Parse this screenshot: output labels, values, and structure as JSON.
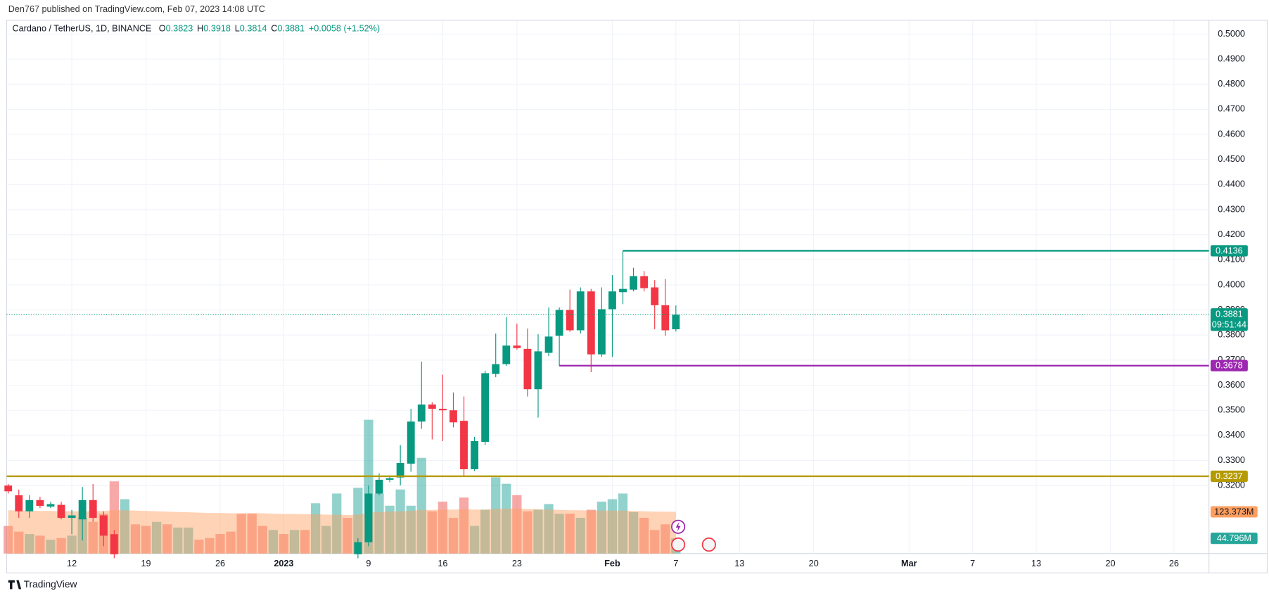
{
  "header": {
    "published": "Den767 published on TradingView.com, Feb 07, 2023 14:08 UTC"
  },
  "footer": {
    "brand": "TradingView"
  },
  "chart_data": {
    "type": "candlestick",
    "symbol": "Cardano / TetherUS, 1D, BINANCE",
    "ohlc_prefixes": [
      "O",
      "H",
      "L",
      "C"
    ],
    "change": "+0.0058 (+1.52%)",
    "up_color": "#089981",
    "down_color": "#f23645",
    "candles": {
      "open": [
        0.32,
        0.3161,
        0.3097,
        0.3142,
        0.3116,
        0.3123,
        0.3071,
        0.3065,
        0.3142,
        0.3081,
        0.3006,
        null,
        null,
        null,
        null,
        null,
        null,
        null,
        null,
        null,
        null,
        null,
        null,
        null,
        null,
        null,
        null,
        null,
        null,
        null,
        null,
        null,
        null,
        0.2926,
        0.2974,
        0.3168,
        0.3223,
        0.3232,
        0.3287,
        0.3455,
        0.3523,
        0.3506,
        0.35,
        0.3458,
        0.3265,
        0.3374,
        0.3645,
        0.3684,
        0.3758,
        0.3745,
        0.3584,
        0.3729,
        0.3797,
        0.39,
        0.3819,
        0.3974,
        0.3723,
        0.3903,
        0.3971,
        0.3981,
        0.4035,
        0.399,
        0.3919,
        0.3823
      ],
      "high": [
        0.3206,
        0.3184,
        0.3161,
        0.3155,
        0.3135,
        0.3135,
        0.3103,
        0.3194,
        0.3206,
        0.3097,
        0.3022,
        null,
        null,
        null,
        null,
        null,
        null,
        null,
        null,
        null,
        null,
        null,
        null,
        null,
        null,
        null,
        null,
        null,
        null,
        null,
        null,
        null,
        null,
        0.299,
        0.32,
        0.3248,
        0.3239,
        0.3361,
        0.3506,
        0.3694,
        0.3532,
        0.3642,
        0.3571,
        0.3555,
        0.3394,
        0.3658,
        0.3806,
        0.3871,
        0.3845,
        0.3826,
        0.3803,
        0.391,
        0.391,
        0.3981,
        0.399,
        0.3984,
        0.399,
        0.4039,
        0.4136,
        0.4068,
        0.4055,
        0.4019,
        0.4023,
        0.3918
      ],
      "low": [
        0.3168,
        0.3071,
        0.3071,
        0.311,
        0.311,
        0.3065,
        0.3006,
        0.2981,
        0.3055,
        0.2958,
        0.291,
        null,
        null,
        null,
        null,
        null,
        null,
        null,
        null,
        null,
        null,
        null,
        null,
        null,
        null,
        null,
        null,
        null,
        null,
        null,
        null,
        null,
        null,
        0.291,
        0.2958,
        0.3161,
        0.3213,
        0.32,
        0.3255,
        0.3426,
        0.3384,
        0.3377,
        0.3432,
        0.3239,
        0.3258,
        0.3361,
        0.3632,
        0.3677,
        0.3742,
        0.3555,
        0.3471,
        0.3716,
        0.3678,
        0.3813,
        0.3806,
        0.3652,
        0.3713,
        0.3713,
        0.3923,
        0.3974,
        0.3974,
        0.3823,
        0.3797,
        0.3814
      ],
      "close": [
        0.3177,
        0.3097,
        0.3142,
        0.3119,
        0.3126,
        0.3071,
        0.3081,
        0.3142,
        0.3071,
        0.3,
        0.2926,
        null,
        null,
        null,
        null,
        null,
        null,
        null,
        null,
        null,
        null,
        null,
        null,
        null,
        null,
        null,
        null,
        null,
        null,
        null,
        null,
        null,
        null,
        0.2974,
        0.3168,
        0.3223,
        0.3229,
        0.329,
        0.3455,
        0.3523,
        0.3506,
        0.35,
        0.3452,
        0.3265,
        0.3377,
        0.3648,
        0.3684,
        0.3758,
        0.3748,
        0.3584,
        0.3735,
        0.3794,
        0.39,
        0.3819,
        0.3974,
        0.3723,
        0.3903,
        0.3974,
        0.3984,
        0.4035,
        0.3987,
        0.3919,
        0.3819,
        0.3881
      ]
    },
    "countdown": "09:51:44",
    "volume": {
      "values": [
        81.6,
        64.8,
        57.6,
        52.8,
        40.8,
        45.6,
        52.8,
        105.6,
        93.6,
        117.6,
        213.6,
        160.8,
        86.4,
        81.6,
        93.6,
        86.4,
        76.8,
        76.8,
        40.8,
        45.6,
        57.6,
        64.8,
        117.6,
        117.6,
        81.6,
        69.6,
        57.6,
        69.6,
        69.6,
        148.8,
        81.6,
        177.6,
        105.6,
        194.4,
        396,
        177.6,
        141.6,
        189.6,
        141.6,
        283.2,
        124.8,
        153.6,
        105.6,
        165.6,
        81.6,
        129.6,
        225.6,
        206.4,
        172.8,
        124.8,
        129.6,
        146.4,
        117.6,
        117.6,
        105.6,
        129.6,
        153.6,
        160.8,
        177.6,
        122.4,
        105.6,
        69.6,
        86.4,
        44.796
      ],
      "colors": [
        "#ef5350",
        "#ef5350",
        "#26a69a",
        "#ef5350",
        "#26a69a",
        "#ef5350",
        "#26a69a",
        "#26a69a",
        "#ef5350",
        "#ef5350",
        "#ef5350",
        "#26a69a",
        "#ef5350",
        "#ef5350",
        "#26a69a",
        "#ef5350",
        "#26a69a",
        "#26a69a",
        "#ef5350",
        "#ef5350",
        "#ef5350",
        "#ef5350",
        "#ef5350",
        "#ef5350",
        "#ef5350",
        "#26a69a",
        "#ef5350",
        "#26a69a",
        "#ef5350",
        "#26a69a",
        "#26a69a",
        "#26a69a",
        "#ef5350",
        "#26a69a",
        "#26a69a",
        "#26a69a",
        "#26a69a",
        "#26a69a",
        "#26a69a",
        "#26a69a",
        "#ef5350",
        "#ef5350",
        "#ef5350",
        "#ef5350",
        "#26a69a",
        "#26a69a",
        "#26a69a",
        "#26a69a",
        "#ef5350",
        "#ef5350",
        "#26a69a",
        "#26a69a",
        "#26a69a",
        "#ef5350",
        "#26a69a",
        "#ef5350",
        "#26a69a",
        "#26a69a",
        "#26a69a",
        "#26a69a",
        "#ef5350",
        "#ef5350",
        "#ef5350",
        "#26a69a"
      ],
      "last_label": "44.796M"
    },
    "volume_ma": {
      "color": "#ff9e5e",
      "values": [
        128,
        127,
        127,
        126,
        126,
        125,
        125,
        125,
        125,
        126,
        128,
        128,
        127,
        126,
        125,
        124,
        123,
        122,
        121,
        120,
        120,
        119,
        119,
        120,
        119,
        118,
        117,
        117,
        116,
        116,
        115,
        115,
        114,
        115,
        121,
        123,
        124,
        125,
        126,
        129,
        129,
        130,
        130,
        131,
        130,
        130,
        132,
        133,
        133,
        132,
        131,
        130,
        129,
        128,
        128,
        127,
        127,
        127,
        127,
        126,
        125,
        124,
        124,
        123.373
      ],
      "last_label": "123.373M"
    },
    "vlim": [
      0,
      920
    ],
    "levels": [
      {
        "value": 0.4136,
        "color": "#089981",
        "from": 58
      },
      {
        "value": 0.3678,
        "color": "#9c27b0",
        "from": 52
      },
      {
        "value": 0.3237,
        "color": "#b59a00",
        "from": -0.15
      }
    ],
    "xlim": [
      -0.15,
      113.3
    ],
    "xticks": [
      {
        "value": 6,
        "label": "12"
      },
      {
        "value": 13,
        "label": "19"
      },
      {
        "value": 20,
        "label": "26"
      },
      {
        "value": 26,
        "label": "2023"
      },
      {
        "value": 34,
        "label": "9"
      },
      {
        "value": 41,
        "label": "16"
      },
      {
        "value": 48,
        "label": "23"
      },
      {
        "value": 57,
        "label": "Feb"
      },
      {
        "value": 63,
        "label": "7"
      },
      {
        "value": 69,
        "label": "13"
      },
      {
        "value": 76,
        "label": "20"
      },
      {
        "value": 85,
        "label": "Mar"
      },
      {
        "value": 91,
        "label": "7"
      },
      {
        "value": 97,
        "label": "13"
      },
      {
        "value": 104,
        "label": "20"
      },
      {
        "value": 110,
        "label": "26"
      }
    ],
    "ylim": [
      0.2929,
      0.5052
    ],
    "yticks": [
      {
        "value": 0.32,
        "label": "0.3200"
      },
      {
        "value": 0.33,
        "label": "0.3300"
      },
      {
        "value": 0.34,
        "label": "0.3400"
      },
      {
        "value": 0.35,
        "label": "0.3500"
      },
      {
        "value": 0.36,
        "label": "0.3600"
      },
      {
        "value": 0.37,
        "label": "0.3700"
      },
      {
        "value": 0.38,
        "label": "0.3800"
      },
      {
        "value": 0.39,
        "label": "0.3900"
      },
      {
        "value": 0.4,
        "label": "0.4000"
      },
      {
        "value": 0.41,
        "label": "0.4100"
      },
      {
        "value": 0.42,
        "label": "0.4200"
      },
      {
        "value": 0.43,
        "label": "0.4300"
      },
      {
        "value": 0.44,
        "label": "0.4400"
      },
      {
        "value": 0.45,
        "label": "0.4500"
      },
      {
        "value": 0.46,
        "label": "0.4600"
      },
      {
        "value": 0.47,
        "label": "0.4700"
      },
      {
        "value": 0.48,
        "label": "0.4800"
      },
      {
        "value": 0.49,
        "label": "0.4900"
      },
      {
        "value": 0.5,
        "label": "0.5000"
      }
    ],
    "grid": true
  }
}
